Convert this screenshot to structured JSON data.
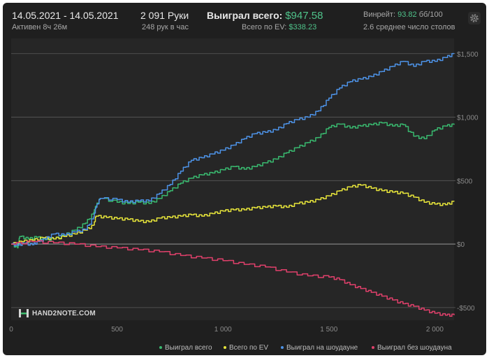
{
  "header": {
    "date_range": "14.05.2021 - 14.05.2021",
    "active_time": "Активен 8ч 26м",
    "hands": "2 091 Руки",
    "hands_per_hour": "248 рук в час",
    "won_total_label": "Выиграл всего:",
    "won_total_value": "$947.58",
    "ev_total_label": "Всего по EV:",
    "ev_total_value": "$338.23",
    "winrate_label": "Винрейт:",
    "winrate_value": "93.82",
    "winrate_unit": "бб/100",
    "tables_avg": "2.6 среднее число столов"
  },
  "logo": {
    "text": "HAND2NOTE.COM"
  },
  "colors": {
    "won_total": "#39b96f",
    "ev_total": "#e6e43a",
    "showdown": "#4d92e6",
    "non_showdown": "#e0406b",
    "grid": "#5a5a5a",
    "zero_line": "#8c8c8c",
    "tick_text": "#8a8a8a"
  },
  "chart_data": {
    "type": "line",
    "x_ticks": [
      0,
      500,
      1000,
      1500,
      2000
    ],
    "x_tick_labels": [
      "0",
      "500",
      "1 000",
      "1 500",
      "2 000"
    ],
    "y_ticks": [
      -500,
      0,
      500,
      1000,
      1500
    ],
    "y_tick_labels": [
      "-$500",
      "$0",
      "$500",
      "$1,000",
      "$1,500"
    ],
    "xlim": [
      0,
      2091
    ],
    "ylim": [
      -600,
      1620
    ],
    "series": [
      {
        "name": "Выиграл всего",
        "key": "won_total",
        "points": [
          [
            0,
            0
          ],
          [
            30,
            -30
          ],
          [
            40,
            60
          ],
          [
            80,
            40
          ],
          [
            120,
            55
          ],
          [
            160,
            35
          ],
          [
            200,
            40
          ],
          [
            250,
            70
          ],
          [
            300,
            110
          ],
          [
            350,
            165
          ],
          [
            390,
            250
          ],
          [
            400,
            300
          ],
          [
            420,
            360
          ],
          [
            500,
            330
          ],
          [
            550,
            320
          ],
          [
            600,
            330
          ],
          [
            650,
            320
          ],
          [
            700,
            360
          ],
          [
            750,
            420
          ],
          [
            800,
            480
          ],
          [
            850,
            520
          ],
          [
            900,
            545
          ],
          [
            950,
            560
          ],
          [
            1000,
            585
          ],
          [
            1050,
            610
          ],
          [
            1100,
            590
          ],
          [
            1150,
            610
          ],
          [
            1200,
            640
          ],
          [
            1250,
            670
          ],
          [
            1300,
            720
          ],
          [
            1350,
            760
          ],
          [
            1400,
            800
          ],
          [
            1450,
            840
          ],
          [
            1500,
            920
          ],
          [
            1550,
            945
          ],
          [
            1600,
            915
          ],
          [
            1650,
            930
          ],
          [
            1700,
            940
          ],
          [
            1750,
            955
          ],
          [
            1800,
            930
          ],
          [
            1850,
            940
          ],
          [
            1900,
            850
          ],
          [
            1950,
            830
          ],
          [
            2000,
            900
          ],
          [
            2050,
            930
          ],
          [
            2091,
            940
          ]
        ]
      },
      {
        "name": "Всего по EV",
        "key": "ev_total",
        "points": [
          [
            0,
            0
          ],
          [
            50,
            20
          ],
          [
            100,
            30
          ],
          [
            150,
            50
          ],
          [
            200,
            40
          ],
          [
            250,
            60
          ],
          [
            300,
            80
          ],
          [
            350,
            110
          ],
          [
            390,
            150
          ],
          [
            400,
            220
          ],
          [
            450,
            210
          ],
          [
            500,
            200
          ],
          [
            550,
            195
          ],
          [
            600,
            180
          ],
          [
            650,
            175
          ],
          [
            700,
            205
          ],
          [
            750,
            210
          ],
          [
            800,
            220
          ],
          [
            850,
            230
          ],
          [
            900,
            220
          ],
          [
            950,
            240
          ],
          [
            1000,
            260
          ],
          [
            1050,
            270
          ],
          [
            1100,
            270
          ],
          [
            1150,
            285
          ],
          [
            1200,
            290
          ],
          [
            1250,
            300
          ],
          [
            1300,
            290
          ],
          [
            1350,
            320
          ],
          [
            1400,
            330
          ],
          [
            1450,
            350
          ],
          [
            1500,
            380
          ],
          [
            1550,
            420
          ],
          [
            1600,
            450
          ],
          [
            1650,
            465
          ],
          [
            1700,
            440
          ],
          [
            1750,
            420
          ],
          [
            1800,
            410
          ],
          [
            1850,
            400
          ],
          [
            1900,
            370
          ],
          [
            1950,
            330
          ],
          [
            2000,
            315
          ],
          [
            2050,
            310
          ],
          [
            2091,
            335
          ]
        ]
      },
      {
        "name": "Выиграл на шоудауне",
        "key": "showdown",
        "points": [
          [
            0,
            0
          ],
          [
            30,
            -10
          ],
          [
            60,
            5
          ],
          [
            100,
            -5
          ],
          [
            130,
            20
          ],
          [
            160,
            40
          ],
          [
            200,
            80
          ],
          [
            250,
            70
          ],
          [
            300,
            95
          ],
          [
            350,
            115
          ],
          [
            390,
            215
          ],
          [
            400,
            290
          ],
          [
            420,
            360
          ],
          [
            500,
            350
          ],
          [
            550,
            330
          ],
          [
            600,
            340
          ],
          [
            650,
            340
          ],
          [
            700,
            400
          ],
          [
            750,
            470
          ],
          [
            800,
            575
          ],
          [
            850,
            660
          ],
          [
            900,
            680
          ],
          [
            950,
            710
          ],
          [
            1000,
            740
          ],
          [
            1050,
            780
          ],
          [
            1100,
            830
          ],
          [
            1150,
            870
          ],
          [
            1200,
            880
          ],
          [
            1250,
            900
          ],
          [
            1300,
            950
          ],
          [
            1350,
            980
          ],
          [
            1400,
            1000
          ],
          [
            1450,
            1050
          ],
          [
            1500,
            1150
          ],
          [
            1550,
            1230
          ],
          [
            1600,
            1280
          ],
          [
            1650,
            1300
          ],
          [
            1700,
            1320
          ],
          [
            1750,
            1360
          ],
          [
            1800,
            1400
          ],
          [
            1850,
            1440
          ],
          [
            1900,
            1400
          ],
          [
            1950,
            1440
          ],
          [
            2000,
            1440
          ],
          [
            2050,
            1470
          ],
          [
            2091,
            1500
          ]
        ]
      },
      {
        "name": "Выиграл без шоудауна",
        "key": "non_showdown",
        "points": [
          [
            0,
            0
          ],
          [
            100,
            20
          ],
          [
            200,
            10
          ],
          [
            300,
            0
          ],
          [
            400,
            -20
          ],
          [
            500,
            -30
          ],
          [
            600,
            -45
          ],
          [
            700,
            -60
          ],
          [
            800,
            -90
          ],
          [
            900,
            -110
          ],
          [
            1000,
            -130
          ],
          [
            1100,
            -160
          ],
          [
            1200,
            -180
          ],
          [
            1300,
            -220
          ],
          [
            1400,
            -250
          ],
          [
            1500,
            -260
          ],
          [
            1550,
            -280
          ],
          [
            1600,
            -320
          ],
          [
            1650,
            -350
          ],
          [
            1700,
            -380
          ],
          [
            1750,
            -410
          ],
          [
            1800,
            -440
          ],
          [
            1850,
            -470
          ],
          [
            1900,
            -490
          ],
          [
            1950,
            -520
          ],
          [
            2000,
            -545
          ],
          [
            2050,
            -560
          ],
          [
            2091,
            -560
          ]
        ]
      }
    ]
  }
}
